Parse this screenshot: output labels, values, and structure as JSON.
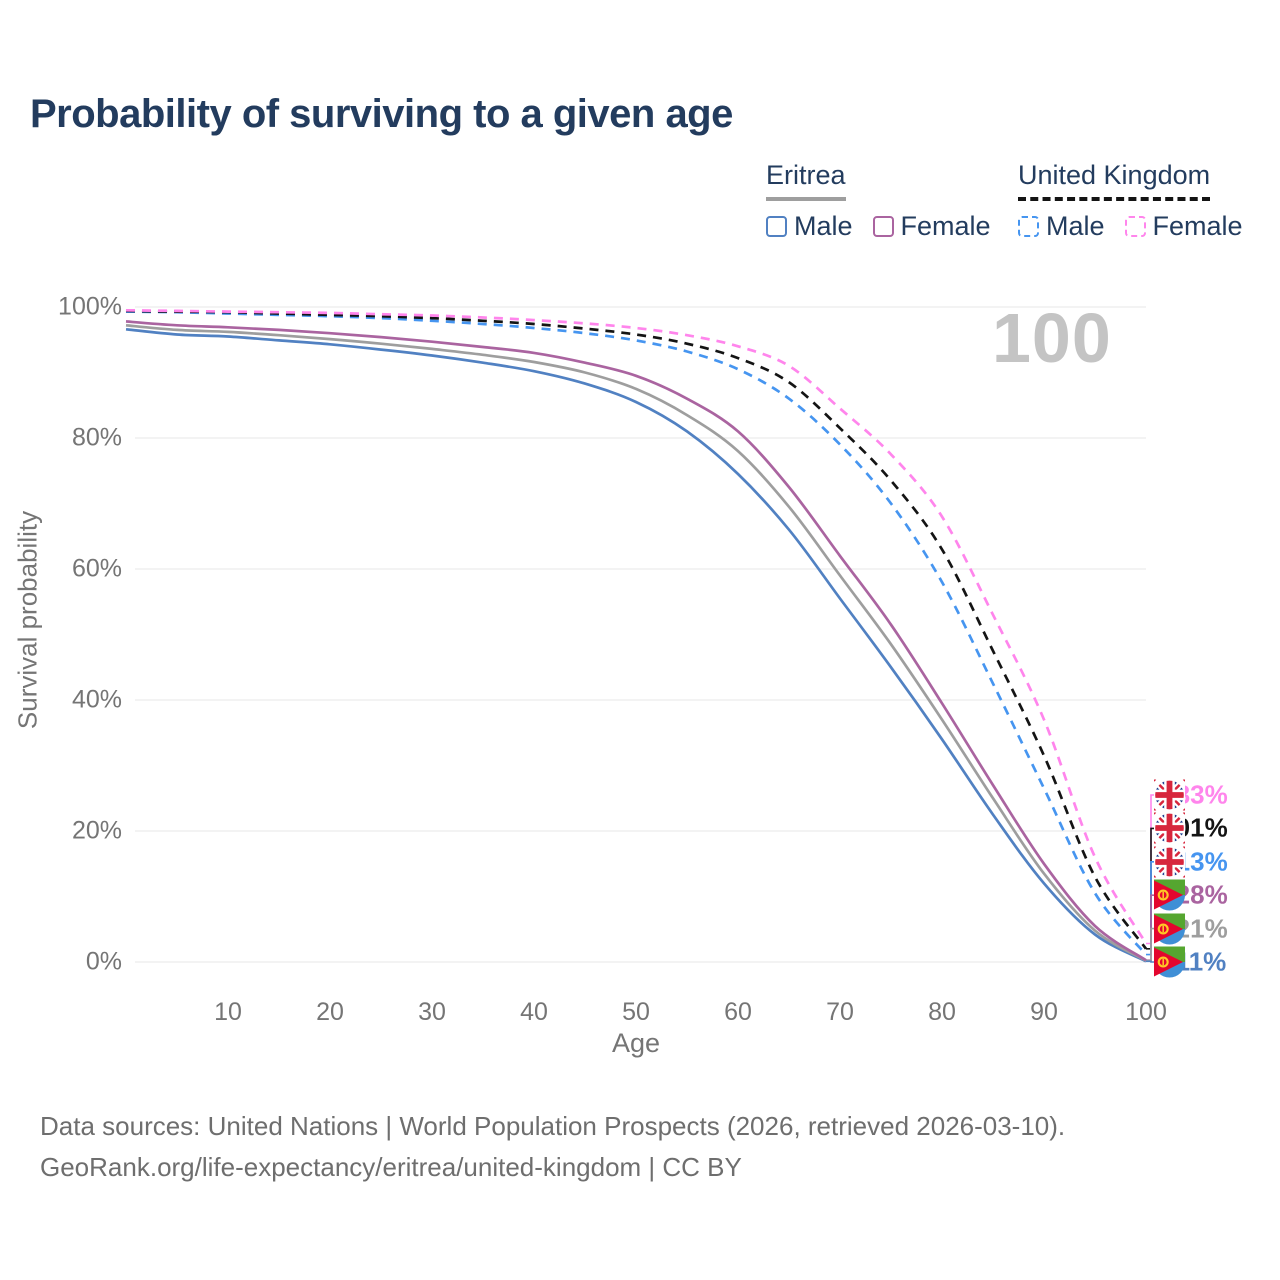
{
  "title": "Probability of surviving to a given age",
  "watermark": "100",
  "legend": {
    "groups": [
      {
        "label": "Eritrea",
        "underline_style": "solid",
        "underline_color": "#9e9e9e",
        "items": [
          {
            "label": "Male",
            "color": "#5181c2",
            "line_style": "solid"
          },
          {
            "label": "Female",
            "color": "#aa64a0",
            "line_style": "solid"
          }
        ]
      },
      {
        "label": "United Kingdom",
        "underline_style": "dashed",
        "underline_color": "#141414",
        "items": [
          {
            "label": "Male",
            "color": "#4695f0",
            "line_style": "dashed"
          },
          {
            "label": "Female",
            "color": "#ff85ec",
            "line_style": "dashed"
          }
        ]
      }
    ]
  },
  "chart_data": {
    "type": "line",
    "title": "Probability of surviving to a given age",
    "xlabel": "Age",
    "ylabel": "Survival probability",
    "xlim": [
      0,
      100
    ],
    "ylim": [
      0,
      100
    ],
    "x_ticks": [
      10,
      20,
      30,
      40,
      50,
      60,
      70,
      80,
      90,
      100
    ],
    "y_ticks": [
      0,
      20,
      40,
      60,
      80,
      100
    ],
    "y_tick_suffix": "%",
    "grid": "horizontal",
    "legend_position": "top-right",
    "x": [
      0,
      5,
      10,
      15,
      20,
      25,
      30,
      35,
      40,
      45,
      50,
      55,
      60,
      65,
      70,
      75,
      80,
      85,
      90,
      95,
      100
    ],
    "series": [
      {
        "id": "eritrea-male",
        "country": "Eritrea",
        "sex": "Male",
        "color": "#5181c2",
        "line_style": "solid",
        "flag": "eritrea",
        "end_label": "0.11%",
        "values": [
          96.6,
          95.8,
          95.5,
          94.9,
          94.3,
          93.5,
          92.6,
          91.5,
          90.2,
          88.3,
          85.5,
          81.0,
          74.5,
          66.0,
          55.5,
          45.0,
          34.0,
          22.5,
          12.0,
          4.2,
          0.11
        ]
      },
      {
        "id": "eritrea-total",
        "country": "Eritrea",
        "sex": "Both sexes",
        "color": "#9e9e9e",
        "line_style": "solid",
        "flag": "eritrea",
        "end_label": "0.21%",
        "values": [
          97.2,
          96.5,
          96.2,
          95.7,
          95.1,
          94.4,
          93.6,
          92.7,
          91.6,
          90.0,
          87.5,
          83.5,
          78.0,
          69.5,
          59.0,
          48.5,
          37.0,
          25.0,
          13.5,
          4.8,
          0.21
        ]
      },
      {
        "id": "eritrea-female",
        "country": "Eritrea",
        "sex": "Female",
        "color": "#aa64a0",
        "line_style": "solid",
        "flag": "eritrea",
        "end_label": "0.28%",
        "values": [
          97.8,
          97.2,
          96.9,
          96.5,
          96.0,
          95.4,
          94.7,
          93.9,
          93.0,
          91.5,
          89.5,
          86.0,
          81.0,
          72.5,
          62.0,
          51.5,
          39.5,
          27.0,
          15.0,
          5.5,
          0.28
        ]
      },
      {
        "id": "uk-male",
        "country": "United Kingdom",
        "sex": "Male",
        "color": "#4695f0",
        "line_style": "dashed",
        "flag": "uk",
        "end_label": "1.13%",
        "values": [
          99.3,
          99.2,
          99.0,
          98.8,
          98.6,
          98.3,
          97.9,
          97.4,
          96.8,
          96.0,
          94.9,
          93.2,
          90.5,
          86.0,
          79.0,
          70.0,
          58.0,
          42.5,
          26.5,
          10.5,
          1.13
        ]
      },
      {
        "id": "uk-total",
        "country": "United Kingdom",
        "sex": "Both sexes",
        "color": "#141414",
        "line_style": "dashed",
        "flag": "uk",
        "end_label": "2.01%",
        "values": [
          99.4,
          99.3,
          99.2,
          99.0,
          98.8,
          98.6,
          98.3,
          97.9,
          97.4,
          96.7,
          95.8,
          94.4,
          92.2,
          88.5,
          81.5,
          73.5,
          63.0,
          47.5,
          31.5,
          13.0,
          2.01
        ]
      },
      {
        "id": "uk-female",
        "country": "United Kingdom",
        "sex": "Female",
        "color": "#ff85ec",
        "line_style": "dashed",
        "flag": "uk",
        "end_label": "2.83%",
        "values": [
          99.5,
          99.4,
          99.3,
          99.2,
          99.1,
          98.9,
          98.7,
          98.4,
          98.0,
          97.5,
          96.8,
          95.7,
          94.0,
          91.0,
          84.5,
          77.5,
          68.0,
          53.0,
          37.0,
          16.0,
          2.83
        ]
      }
    ],
    "end_label_order_top_to_bottom": [
      "2.83%",
      "2.01%",
      "1.13%",
      "0.28%",
      "0.21%",
      "0.11%"
    ]
  },
  "footer": {
    "line1": "Data sources: United Nations | World Population Prospects (2026, retrieved 2026-03-10).",
    "line2": "GeoRank.org/life-expectancy/eritrea/united-kingdom | CC BY"
  }
}
